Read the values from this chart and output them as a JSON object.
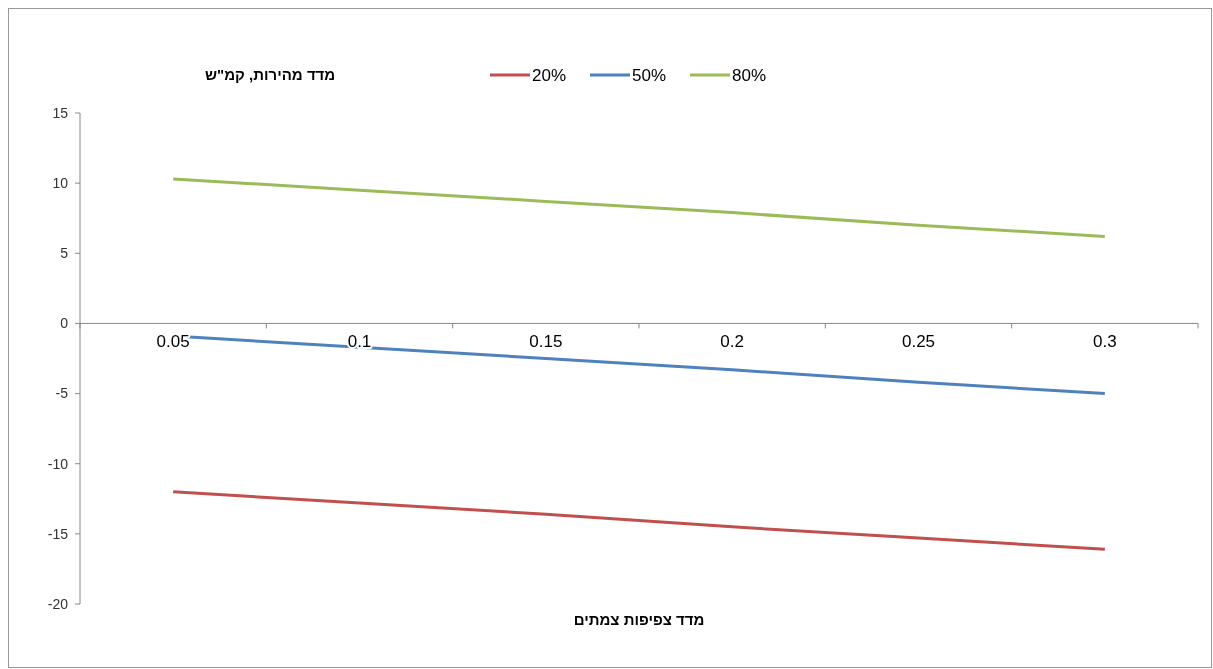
{
  "chart_data": {
    "type": "line",
    "ylabel": "מדד מהירות, קמ\"ש",
    "xlabel": "מדד צפיפות צמתים",
    "categories": [
      "0.05",
      "0.1",
      "0.15",
      "0.2",
      "0.25",
      "0.3"
    ],
    "series": [
      {
        "name": "20%",
        "color": "#c0504d",
        "values": [
          -12.0,
          -12.8,
          -13.6,
          -14.5,
          -15.3,
          -16.1
        ]
      },
      {
        "name": "50%",
        "color": "#4f81bd",
        "values": [
          -0.9,
          -1.7,
          -2.5,
          -3.3,
          -4.2,
          -5.0
        ]
      },
      {
        "name": "80%",
        "color": "#9bbb59",
        "values": [
          10.3,
          9.5,
          8.7,
          7.9,
          7.0,
          6.2
        ]
      }
    ],
    "ylim": [
      -20,
      15
    ],
    "yticks": [
      -20,
      -15,
      -10,
      -5,
      0,
      5,
      10,
      15
    ],
    "grid": false,
    "legend": "top",
    "marker": "none",
    "line_style": "solid"
  }
}
